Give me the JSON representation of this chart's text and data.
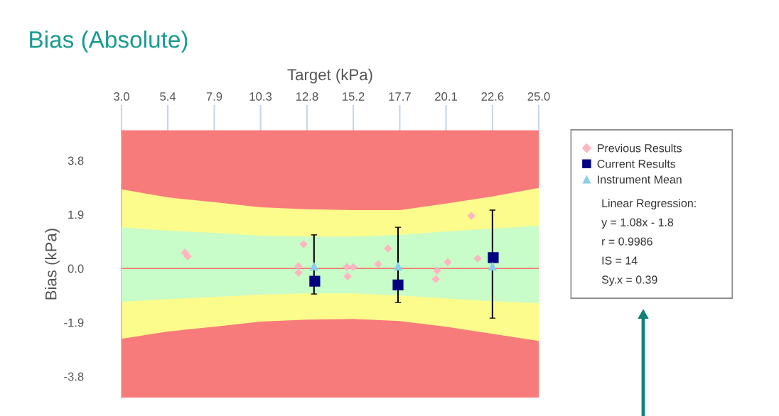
{
  "chart_data": {
    "type": "scatter",
    "title": "Bias (Absolute)",
    "xlabel": "Target (kPa)",
    "ylabel": "Bias (kPa)",
    "xlim": [
      3.0,
      25.0
    ],
    "xticks": [
      {
        "value": 3,
        "label": "3.0"
      },
      {
        "value": 5.44,
        "label": "5.4"
      },
      {
        "value": 7.89,
        "label": "7.9"
      },
      {
        "value": 10.33,
        "label": "10.3"
      },
      {
        "value": 12.78,
        "label": "12.8"
      },
      {
        "value": 15.22,
        "label": "15.2"
      },
      {
        "value": 17.67,
        "label": "17.7"
      },
      {
        "value": 20.11,
        "label": "20.1"
      },
      {
        "value": 22.56,
        "label": "22.6"
      },
      {
        "value": 25,
        "label": "25.0"
      }
    ],
    "ylim": [
      -4.55,
      4.85
    ],
    "yticks": [
      -3.8,
      -1.9,
      {
        "value": 0,
        "label": "0.0"
      },
      1.9,
      3.8
    ],
    "grid": false,
    "legend": "right",
    "bands": [
      {
        "axis": "y",
        "from": -4.55,
        "to": 4.85,
        "color": "#f87b7b"
      }
    ],
    "ref_lines": [
      {
        "axis": "y",
        "value": 0.0,
        "color": "#f08070",
        "line_style": "solid"
      }
    ],
    "series": [
      {
        "type": "area",
        "color": "#fcfc8c",
        "x": [
          3.0,
          5.44,
          7.89,
          10.33,
          12.78,
          15.22,
          17.67,
          20.11,
          22.56,
          25.0
        ],
        "values": [
          2.78,
          2.5,
          2.33,
          2.15,
          2.08,
          2.05,
          2.05,
          2.28,
          2.53,
          2.83
        ]
      },
      {
        "type": "area",
        "color": "#fcfc8c",
        "x": [
          3.0,
          5.44,
          7.89,
          10.33,
          12.78,
          15.22,
          17.67,
          20.11,
          22.56,
          25.0
        ],
        "values": [
          -2.48,
          -2.22,
          -2.05,
          -1.87,
          -1.8,
          -1.78,
          -1.85,
          -2.05,
          -2.3,
          -2.55
        ]
      },
      {
        "type": "area",
        "color": "#c8fcc8",
        "x": [
          3.0,
          5.44,
          7.89,
          10.33,
          12.78,
          15.22,
          17.67,
          20.11,
          22.56,
          25.0
        ],
        "values": [
          1.45,
          1.33,
          1.25,
          1.15,
          1.12,
          1.12,
          1.18,
          1.3,
          1.4,
          1.5
        ]
      },
      {
        "type": "area",
        "color": "#c8fcc8",
        "x": [
          3.0,
          5.44,
          7.89,
          10.33,
          12.78,
          15.22,
          17.67,
          20.11,
          22.56,
          25.0
        ],
        "values": [
          -1.18,
          -1.08,
          -1.0,
          -0.92,
          -0.88,
          -0.88,
          -0.95,
          -1.05,
          -1.15,
          -1.22
        ]
      },
      {
        "name": "Previous Results",
        "type": "scatter",
        "marker": "diamond",
        "color": "#ffb6c1",
        "x": [
          6.34,
          6.49,
          12.6,
          12.33,
          12.33,
          14.88,
          15.22,
          14.92,
          16.53,
          17.05,
          19.64,
          19.57,
          20.2,
          21.44,
          21.78
        ],
        "values": [
          0.55,
          0.43,
          0.85,
          0.08,
          -0.15,
          0.05,
          0.05,
          -0.28,
          0.15,
          0.7,
          -0.08,
          -0.38,
          0.22,
          1.85,
          0.35
        ]
      },
      {
        "name": "Current Results",
        "type": "scatter",
        "marker": "square",
        "color": "#000080",
        "x": [
          13.19,
          17.58,
          22.6
        ],
        "values": [
          -0.45,
          -0.58,
          0.38
        ]
      },
      {
        "name": "Instrument Mean",
        "type": "scatter",
        "marker": "triangle",
        "color": "#87ceeb",
        "x": [
          13.15,
          17.58,
          22.56
        ],
        "values": [
          0.08,
          0.08,
          0.08
        ],
        "errors": [
          [
            -0.9,
            1.18
          ],
          [
            -1.2,
            1.45
          ],
          [
            -1.75,
            2.05
          ]
        ]
      }
    ],
    "annotations": [
      "Linear Regression:",
      "y = 1.08x - 1.8",
      "r = 0.9986",
      "IS = 14",
      "Sy.x = 0.39"
    ]
  }
}
